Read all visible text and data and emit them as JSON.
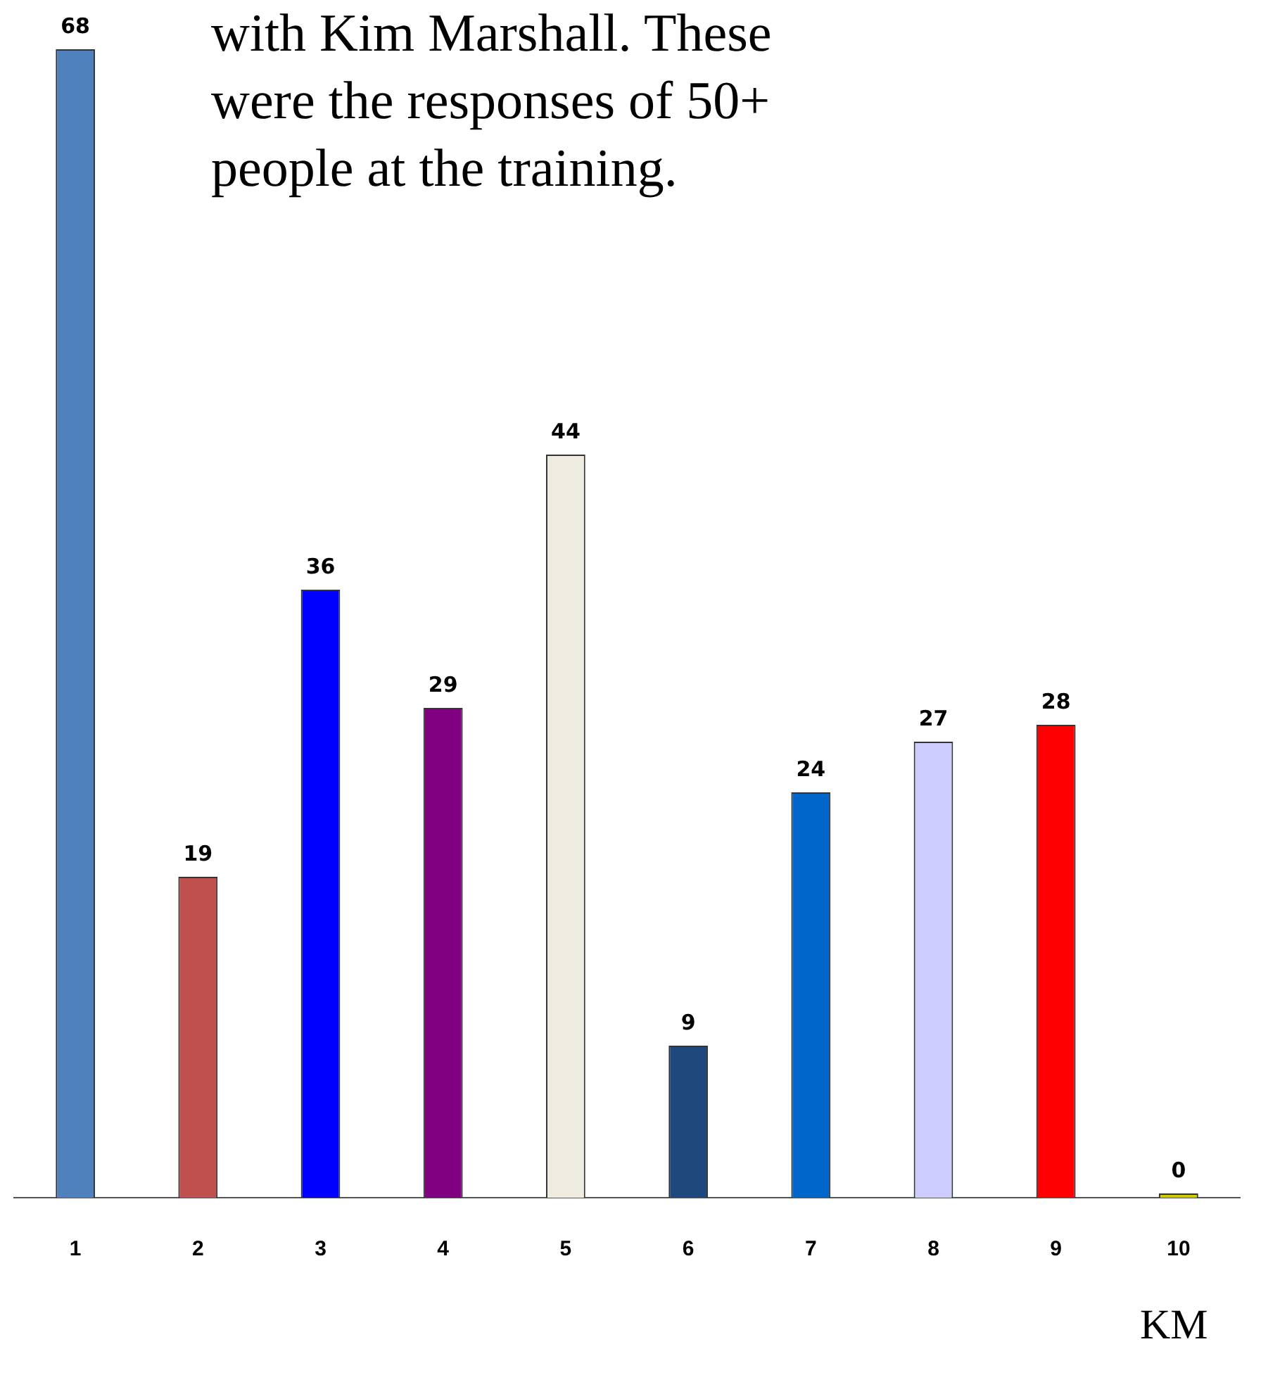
{
  "chart_data": {
    "type": "bar",
    "categories": [
      "1",
      "2",
      "3",
      "4",
      "5",
      "6",
      "7",
      "8",
      "9",
      "10"
    ],
    "values": [
      68,
      19,
      36,
      29,
      44,
      9,
      24,
      27,
      28,
      0
    ],
    "colors": [
      "#4f81bd",
      "#c0504d",
      "#0000ff",
      "#800080",
      "#eeece1",
      "#1f497d",
      "#0066cc",
      "#ccccff",
      "#ff0000",
      "#cccc00"
    ],
    "data_labels": true,
    "grid": false,
    "legend": false,
    "annotations": [
      "with Kim Marshall.  These were the responses of 50+ people at the training.",
      "KM"
    ]
  }
}
